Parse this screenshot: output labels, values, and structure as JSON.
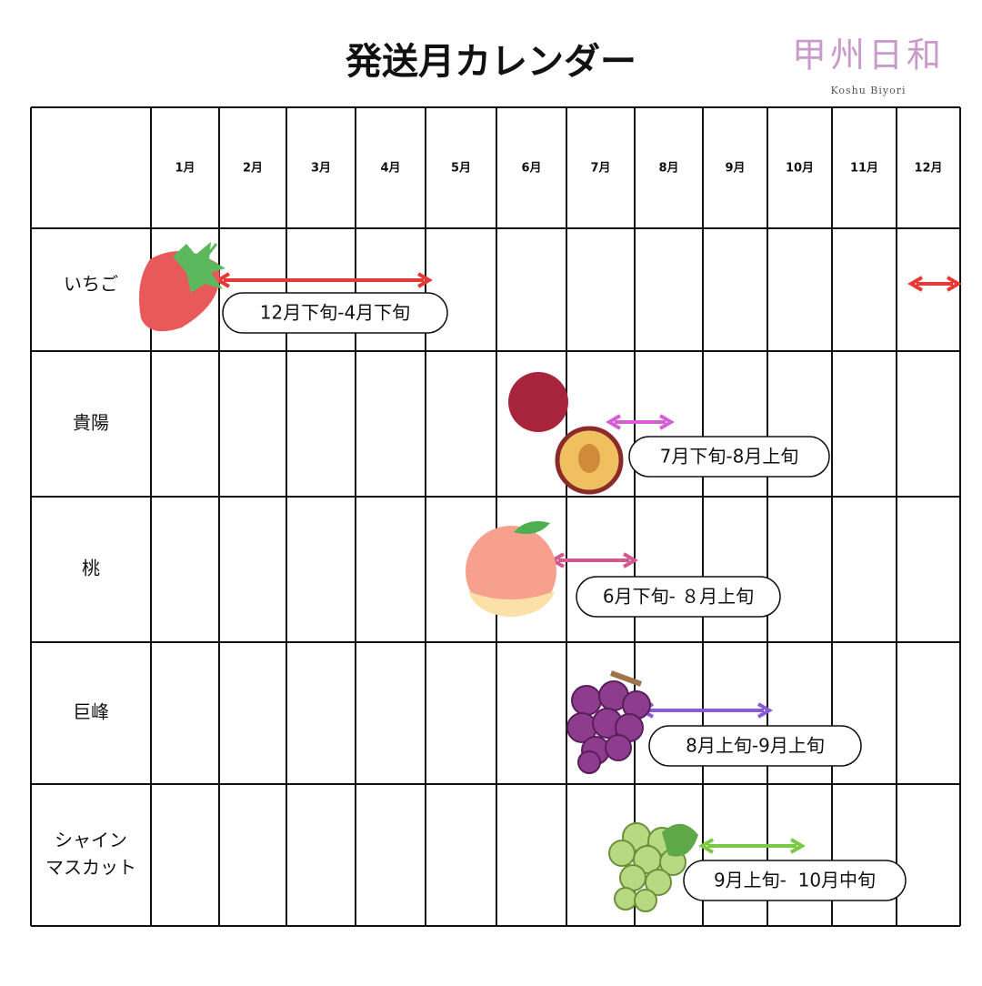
{
  "header": {
    "title": "発送月カレンダー",
    "logo": "甲州日和",
    "logo_subtitle": "Koshu Biyori"
  },
  "table": {
    "months": [
      "1月",
      "2月",
      "3月",
      "4月",
      "5月",
      "6月",
      "7月",
      "8月",
      "9月",
      "10月",
      "11月",
      "12月"
    ],
    "rows": [
      {
        "label": [
          "いちご"
        ],
        "period": "12月下旬-4月下旬"
      },
      {
        "label": [
          "貴陽"
        ],
        "period": "7月下旬-8月上旬"
      },
      {
        "label": [
          "桃"
        ],
        "period": "6月下旬- ８月上旬"
      },
      {
        "label": [
          "巨峰"
        ],
        "period": "8月上旬-9月上旬"
      },
      {
        "label": [
          "シャイン",
          "マスカット"
        ],
        "period": "9月上旬-  10月中旬"
      }
    ]
  }
}
